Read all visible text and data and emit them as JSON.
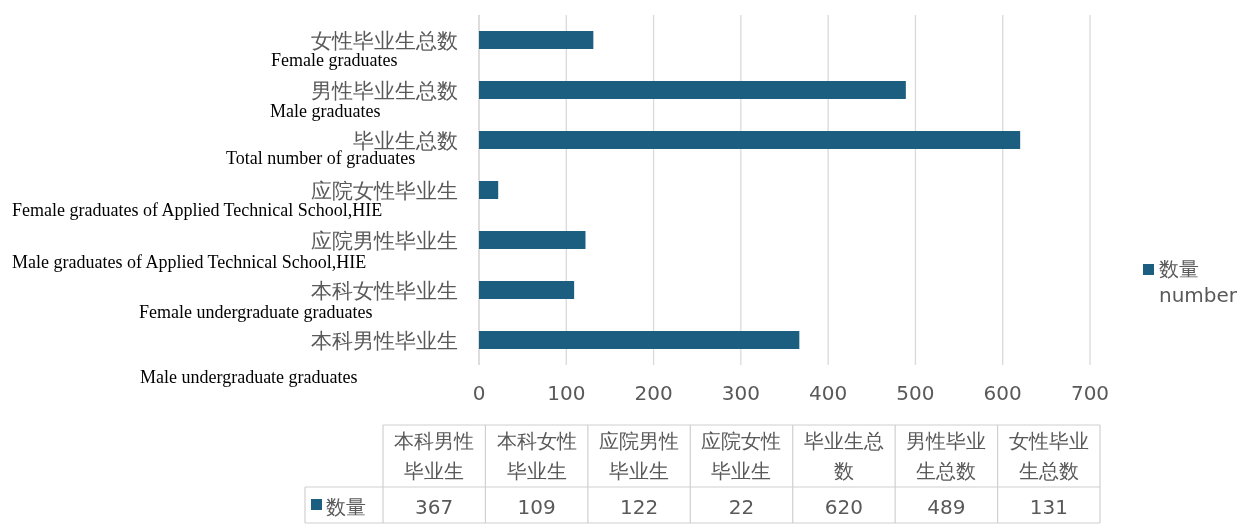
{
  "chart_data": [
    {
      "type": "bar",
      "orientation": "horizontal",
      "categories": [
        "女性毕业生总数",
        "男性毕业生总数",
        "毕业生总数",
        "应院女性毕业生",
        "应院男性毕业生",
        "本科女性毕业生",
        "本科男性毕业生"
      ],
      "series": [
        {
          "name": "数量",
          "color": "#1b5e80",
          "values": [
            131,
            489,
            620,
            22,
            122,
            109,
            367
          ]
        }
      ],
      "xlim": [
        0,
        700
      ],
      "xticks": [
        0,
        100,
        200,
        300,
        400,
        500,
        600,
        700
      ],
      "grid": "x",
      "legend": "right",
      "annotations": [
        "Female graduates",
        "Male graduates",
        "Total number of graduates",
        "Female graduates of Applied Technical School,HIE",
        "Male graduates of Applied Technical School,HIE",
        "Female undergraduate graduates",
        "Male undergraduate graduates",
        "number"
      ]
    },
    {
      "type": "other",
      "categories": [
        "本科男性毕业生",
        "本科女性毕业生",
        "应院男性毕业生",
        "应院女性毕业生",
        "毕业生总数",
        "男性毕业生总数",
        "女性毕业生总数"
      ],
      "series": [
        {
          "name": "数量",
          "color": "#1b5e80",
          "values": [
            367,
            109,
            122,
            22,
            620,
            489,
            131
          ]
        }
      ],
      "data_labels": true
    }
  ]
}
